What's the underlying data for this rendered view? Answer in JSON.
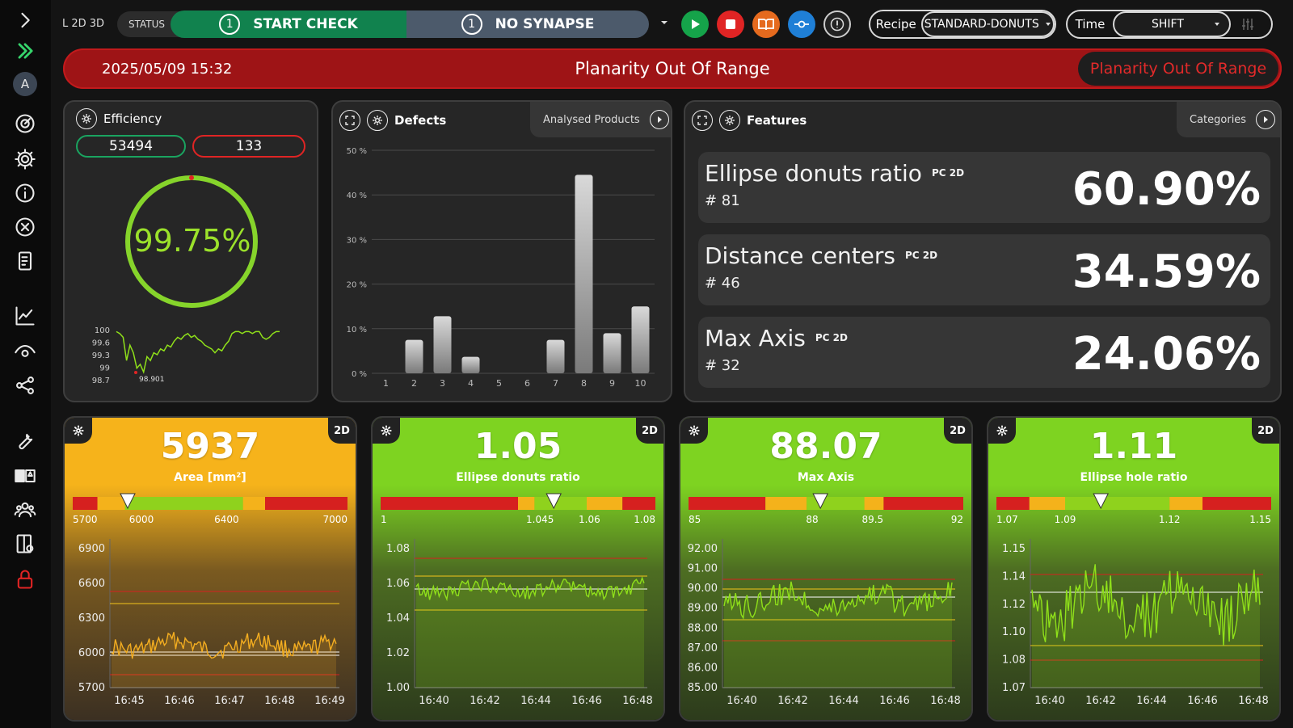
{
  "sidebar": {
    "items": [
      "chevron-right",
      "expand",
      "avatar",
      "dashboard",
      "settings",
      "info",
      "close",
      "document",
      "chart",
      "eye",
      "share",
      "wrench",
      "translate",
      "users",
      "layout",
      "lock"
    ],
    "avatar_letter": "A"
  },
  "topbar": {
    "line": "L 2D 3D",
    "status_label": "STATUS",
    "start_num": "1",
    "start_label": "START CHECK",
    "synapse_num": "1",
    "synapse_label": "NO SYNAPSE",
    "recipe_label": "Recipe",
    "recipe_value": "STANDARD-DONUTS",
    "time_label": "Time",
    "time_value": "SHIFT",
    "colors": {
      "play": "#15a34a",
      "stop": "#e02424",
      "book": "#e56a1e",
      "link": "#1f7fd6"
    }
  },
  "alarm": {
    "datetime": "2025/05/09 15:32",
    "message": "Planarity Out Of Range",
    "badge": "Planarity Out Of Range"
  },
  "efficiency": {
    "title": "Efficiency",
    "good": "53494",
    "bad": "133",
    "percent": "99.75%",
    "percent_value": 99.75,
    "trend": {
      "yticks": [
        "100",
        "99.6",
        "99.3",
        "99",
        "98.7"
      ],
      "min_label": "98.901",
      "values": [
        99.95,
        99.9,
        99.8,
        99.2,
        99.6,
        99.4,
        99.0,
        99.1,
        98.9,
        99.3,
        99.2,
        99.4,
        99.35,
        99.5,
        99.45,
        99.6,
        99.55,
        99.7,
        99.8,
        99.75,
        99.85,
        99.9,
        99.8,
        99.85,
        99.75,
        99.7,
        99.6,
        99.55,
        99.5,
        99.4,
        99.5,
        99.45,
        99.6,
        99.7,
        99.9,
        99.95,
        99.95,
        99.9,
        99.95,
        99.95,
        99.9,
        99.95,
        99.95,
        99.8,
        99.75,
        99.8,
        99.9,
        99.95,
        99.95
      ]
    }
  },
  "defects": {
    "title": "Defects",
    "tab": "Analysed Products",
    "chart_data": {
      "type": "bar",
      "categories": [
        "1",
        "2",
        "3",
        "4",
        "5",
        "6",
        "7",
        "8",
        "9",
        "10"
      ],
      "values": [
        0,
        7.5,
        12.8,
        3.7,
        0,
        0,
        7.5,
        44.5,
        9,
        15
      ],
      "yticks": [
        "0 %",
        "10 %",
        "20 %",
        "30 %",
        "40 %",
        "50 %"
      ],
      "ylim": [
        0,
        50
      ]
    }
  },
  "features": {
    "title": "Features",
    "tab": "Categories",
    "items": [
      {
        "name": "Ellipse donuts ratio",
        "tag": "PC 2D",
        "count": "# 81",
        "value": "60.90%"
      },
      {
        "name": "Distance centers",
        "tag": "PC 2D",
        "count": "# 46",
        "value": "34.59%"
      },
      {
        "name": "Max Axis",
        "tag": "PC 2D",
        "count": "# 32",
        "value": "24.06%"
      }
    ]
  },
  "kpis": [
    {
      "value": "5937",
      "label": "Area [mm²]",
      "tag": "2D",
      "scale": [
        "5700",
        "6000",
        "6400",
        "7000"
      ],
      "yticks": [
        "6900",
        "6600",
        "6300",
        "6000",
        "5700"
      ],
      "xticks": [
        "16:45",
        "16:46",
        "16:47",
        "16:48",
        "16:49"
      ],
      "theme": "amber",
      "top": "#f6b31b",
      "bottom": "#3a2f22",
      "line": "#f3ad20",
      "marker": 0.2
    },
    {
      "value": "1.05",
      "label": "Ellipse donuts ratio",
      "tag": "2D",
      "scale": [
        "1",
        "1.045",
        "1.06",
        "1.08"
      ],
      "yticks": [
        "1.08",
        "1.06",
        "1.04",
        "1.02",
        "1.00"
      ],
      "xticks": [
        "16:40",
        "16:42",
        "16:44",
        "16:46",
        "16:48"
      ],
      "theme": "green",
      "top": "#7ed321",
      "bottom": "#2c3a1c",
      "line": "#8fe01a",
      "marker": 0.63
    },
    {
      "value": "88.07",
      "label": "Max Axis",
      "tag": "2D",
      "scale": [
        "85",
        "88",
        "89.5",
        "92"
      ],
      "yticks": [
        "92.00",
        "91.00",
        "90.00",
        "89.00",
        "88.00",
        "87.00",
        "86.00",
        "85.00"
      ],
      "xticks": [
        "16:40",
        "16:42",
        "16:44",
        "16:46",
        "16:48"
      ],
      "theme": "green",
      "top": "#7ed321",
      "bottom": "#2c3a1c",
      "line": "#8fe01a",
      "marker": 0.48
    },
    {
      "value": "1.11",
      "label": "Ellipse hole ratio",
      "tag": "2D",
      "scale": [
        "1.07",
        "1.09",
        "1.12",
        "1.15"
      ],
      "yticks": [
        "1.15",
        "1.14",
        "1.12",
        "1.10",
        "1.08",
        "1.07"
      ],
      "xticks": [
        "16:40",
        "16:42",
        "16:44",
        "16:46",
        "16:48"
      ],
      "theme": "green",
      "top": "#7ed321",
      "bottom": "#2c3a1c",
      "line": "#8fe01a",
      "marker": 0.38
    }
  ]
}
